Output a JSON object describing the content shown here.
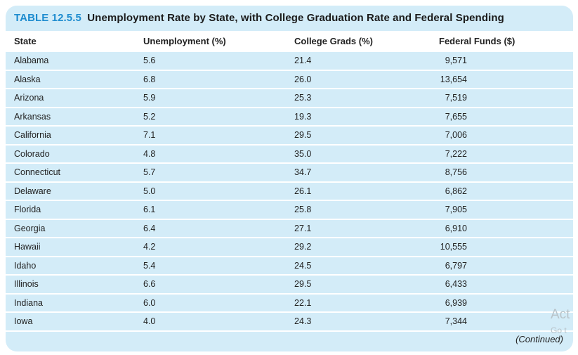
{
  "table": {
    "number": "TABLE 12.5.5",
    "title": "Unemployment Rate by State, with College Graduation Rate and Federal Spending",
    "headers": [
      "State",
      "Unemployment (%)",
      "College Grads (%)",
      "Federal Funds ($)"
    ],
    "rows": [
      [
        "Alabama",
        "5.6",
        "21.4",
        "9,571"
      ],
      [
        "Alaska",
        "6.8",
        "26.0",
        "13,654"
      ],
      [
        "Arizona",
        "5.9",
        "25.3",
        "7,519"
      ],
      [
        "Arkansas",
        "5.2",
        "19.3",
        "7,655"
      ],
      [
        "California",
        "7.1",
        "29.5",
        "7,006"
      ],
      [
        "Colorado",
        "4.8",
        "35.0",
        "7,222"
      ],
      [
        "Connecticut",
        "5.7",
        "34.7",
        "8,756"
      ],
      [
        "Delaware",
        "5.0",
        "26.1",
        "6,862"
      ],
      [
        "Florida",
        "6.1",
        "25.8",
        "7,905"
      ],
      [
        "Georgia",
        "6.4",
        "27.1",
        "6,910"
      ],
      [
        "Hawaii",
        "4.2",
        "29.2",
        "10,555"
      ],
      [
        "Idaho",
        "5.4",
        "24.5",
        "6,797"
      ],
      [
        "Illinois",
        "6.6",
        "29.5",
        "6,433"
      ],
      [
        "Indiana",
        "6.0",
        "22.1",
        "6,939"
      ],
      [
        "Iowa",
        "4.0",
        "24.3",
        "7,344"
      ]
    ],
    "footer": "(Continued)"
  },
  "watermark": {
    "line1": "Act",
    "line2": "Go t"
  },
  "colors": {
    "background": "#d3ecf8",
    "accent": "#1e8ccf",
    "header_row": "#ffffff"
  }
}
